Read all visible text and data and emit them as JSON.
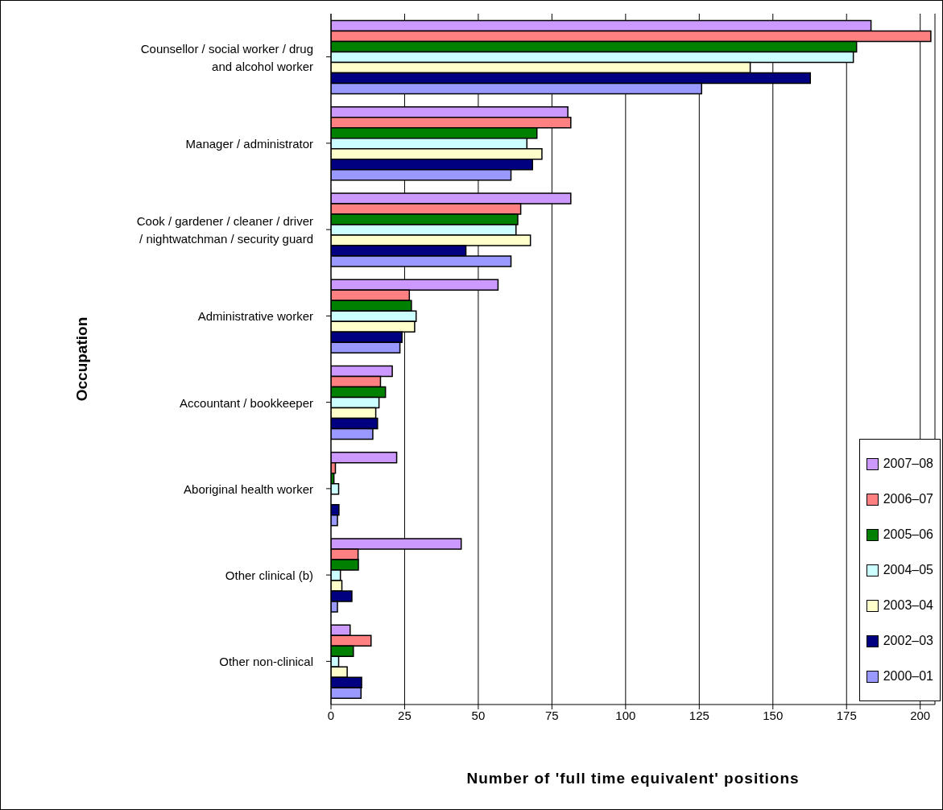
{
  "chart_data": {
    "type": "bar",
    "orientation": "horizontal",
    "xlabel": "Number of 'full time equivalent' positions",
    "ylabel": "Occupation",
    "categories": [
      "Counsellor / social worker / drug and alcohol worker",
      "Manager / administrator",
      "Cook / gardener / cleaner / driver / nightwatchman / security guard",
      "Administrative worker",
      "Accountant / bookkeeper",
      "Aboriginal health worker",
      "Other clinical (b)",
      "Other non-clinical"
    ],
    "series": [
      {
        "name": "2007–08",
        "color": "#cc99ff",
        "values": [
          183.3,
          80.4,
          81.4,
          56.7,
          20.8,
          22.3,
          44.2,
          6.5
        ]
      },
      {
        "name": "2006–07",
        "color": "#ff8080",
        "values": [
          203.6,
          81.4,
          64.4,
          26.6,
          16.8,
          1.5,
          9.2,
          13.6
        ]
      },
      {
        "name": "2005–06",
        "color": "#008000",
        "values": [
          178.4,
          69.9,
          63.4,
          27.3,
          18.5,
          1.0,
          9.3,
          7.6
        ]
      },
      {
        "name": "2004–05",
        "color": "#ccffff",
        "values": [
          177.3,
          66.5,
          62.8,
          28.9,
          16.3,
          2.6,
          3.2,
          2.6
        ]
      },
      {
        "name": "2003–04",
        "color": "#ffffcc",
        "values": [
          142.3,
          71.6,
          67.7,
          28.4,
          15.2,
          0,
          3.7,
          5.5
        ]
      },
      {
        "name": "2002–03",
        "color": "#000080",
        "values": [
          162.7,
          68.4,
          45.8,
          24.1,
          15.8,
          2.7,
          7.1,
          10.4
        ]
      },
      {
        "name": "2000–01",
        "color": "#9999ff",
        "values": [
          125.8,
          61.1,
          61.1,
          23.4,
          14.2,
          2.2,
          2.2,
          10.2
        ]
      }
    ],
    "xlim": [
      0,
      205
    ],
    "xticks": [
      0,
      25,
      50,
      75,
      100,
      125,
      150,
      175,
      200
    ],
    "grid": "x",
    "legend": "bottom right"
  }
}
